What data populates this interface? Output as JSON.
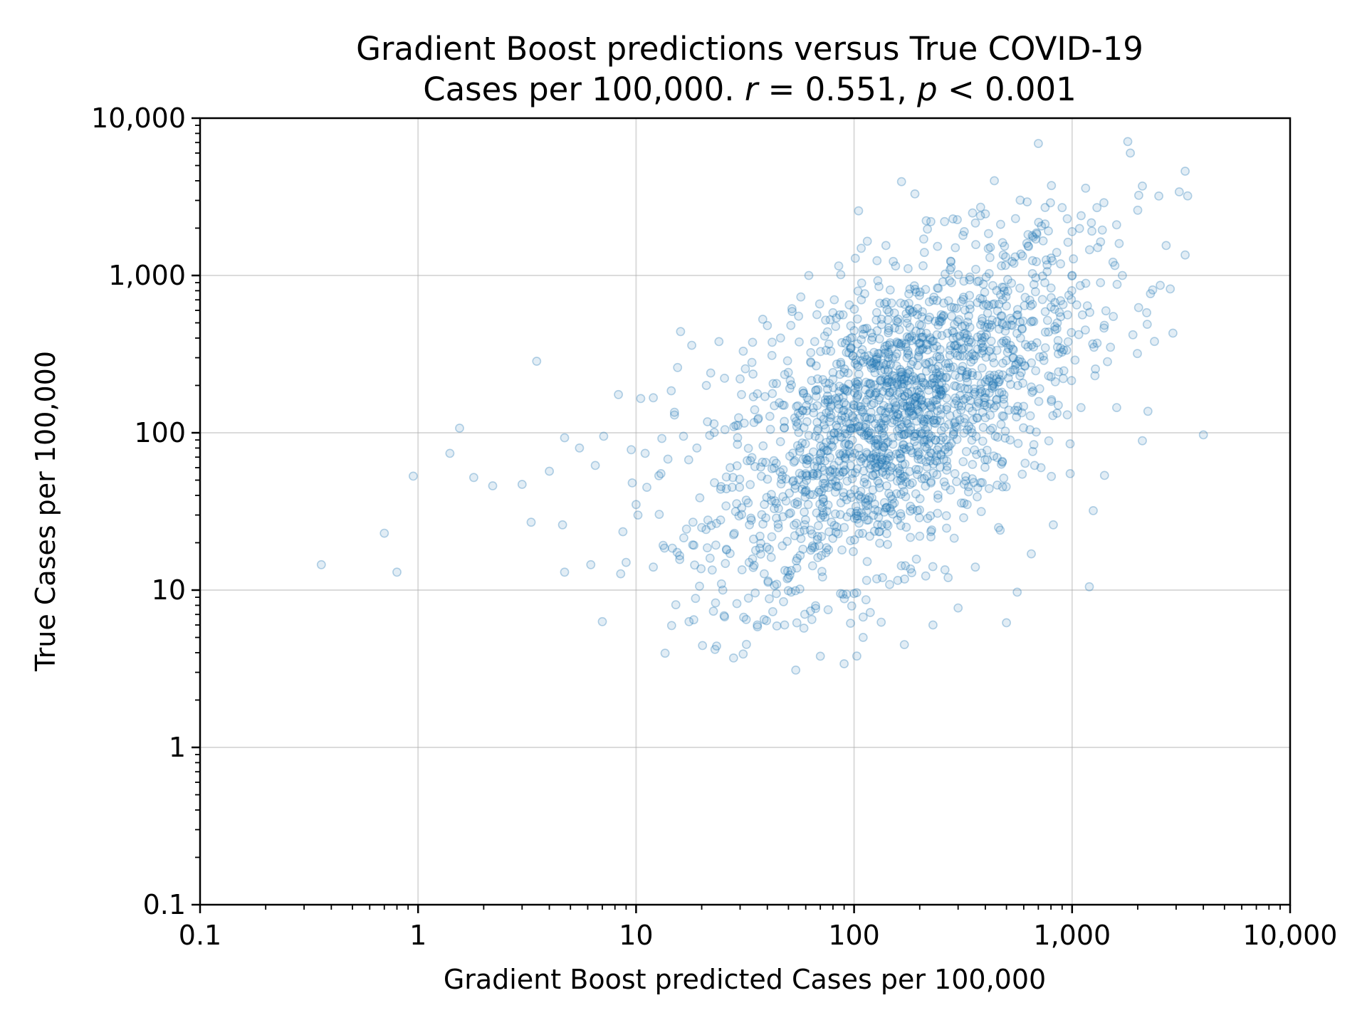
{
  "chart_data": {
    "type": "scatter",
    "title_line1": "Gradient Boost predictions versus True COVID-19",
    "title_line2_prefix": "Cases per 100,000. ",
    "title_r_symbol": "r",
    "title_r_value": " = 0.551, ",
    "title_p_symbol": "p",
    "title_p_value": " < 0.001",
    "xlabel": "Gradient Boost predicted Cases per 100,000",
    "ylabel": "True Cases per 100,000",
    "xscale": "log",
    "yscale": "log",
    "xlim": [
      0.1,
      10000
    ],
    "ylim": [
      0.1,
      10000
    ],
    "grid": true,
    "series_color": "#1f77b4",
    "x_ticks": [
      0.1,
      1,
      10,
      100,
      1000,
      10000
    ],
    "x_tick_labels": [
      "0.1",
      "1",
      "10",
      "100",
      "1,000",
      "10,000"
    ],
    "y_ticks": [
      0.1,
      1,
      10,
      100,
      1000,
      10000
    ],
    "y_tick_labels": [
      "0.1",
      "1",
      "10",
      "100",
      "1,000",
      "10,000"
    ],
    "points": [
      [
        0.36,
        14.5
      ],
      [
        0.7,
        23
      ],
      [
        0.8,
        13
      ],
      [
        0.95,
        53
      ],
      [
        1.4,
        74
      ],
      [
        1.55,
        107
      ],
      [
        1.8,
        52
      ],
      [
        2.2,
        46
      ],
      [
        3.0,
        47
      ],
      [
        3.3,
        27
      ],
      [
        3.5,
        285
      ],
      [
        4.0,
        57
      ],
      [
        4.6,
        26
      ],
      [
        4.7,
        13
      ],
      [
        4.7,
        93
      ],
      [
        5.5,
        80
      ],
      [
        6.2,
        14.5
      ],
      [
        6.5,
        62
      ],
      [
        7.0,
        6.3
      ],
      [
        7.1,
        95
      ],
      [
        8.3,
        175
      ],
      [
        8.5,
        12.7
      ],
      [
        8.7,
        23.5
      ],
      [
        9.0,
        15
      ],
      [
        9.5,
        78
      ],
      [
        9.6,
        48
      ],
      [
        10.0,
        35
      ],
      [
        10.2,
        30
      ],
      [
        10.5,
        165
      ],
      [
        11.0,
        74
      ],
      [
        11.2,
        45
      ],
      [
        12.0,
        167
      ],
      [
        12.0,
        14
      ],
      [
        13.0,
        55
      ],
      [
        13.5,
        18.5
      ],
      [
        14.0,
        68
      ],
      [
        14.5,
        185
      ],
      [
        15.0,
        135
      ],
      [
        15.5,
        260
      ],
      [
        16.0,
        440
      ],
      [
        16.5,
        95
      ],
      [
        17.5,
        6.3
      ],
      [
        18.0,
        360
      ],
      [
        19.0,
        80
      ],
      [
        20.0,
        25
      ],
      [
        21.0,
        200
      ],
      [
        22.0,
        240
      ],
      [
        23.0,
        4.2
      ],
      [
        24.0,
        380
      ],
      [
        25.0,
        10
      ],
      [
        26.0,
        18
      ],
      [
        27.0,
        60
      ],
      [
        28.0,
        3.7
      ],
      [
        29.0,
        8.2
      ],
      [
        30.0,
        220
      ],
      [
        31.0,
        330
      ],
      [
        32.0,
        6.5
      ],
      [
        33.0,
        15
      ],
      [
        34.0,
        280
      ],
      [
        35.0,
        140
      ],
      [
        36.0,
        6.0
      ],
      [
        37.0,
        22
      ],
      [
        38.0,
        65
      ],
      [
        39.0,
        170
      ],
      [
        40.0,
        480
      ],
      [
        42.0,
        310
      ],
      [
        44.0,
        9.5
      ],
      [
        45.0,
        33
      ],
      [
        46.0,
        400
      ],
      [
        47.0,
        150
      ],
      [
        48.0,
        6.0
      ],
      [
        50.0,
        12
      ],
      [
        52.0,
        590
      ],
      [
        54.0,
        3.1
      ],
      [
        55.0,
        35
      ],
      [
        57.0,
        730
      ],
      [
        60.0,
        55
      ],
      [
        62.0,
        1000
      ],
      [
        64.0,
        6.5
      ],
      [
        66.0,
        380
      ],
      [
        68.0,
        220
      ],
      [
        70.0,
        3.8
      ],
      [
        72.0,
        30
      ],
      [
        74.0,
        520
      ],
      [
        76.0,
        7.5
      ],
      [
        78.0,
        90
      ],
      [
        80.0,
        580
      ],
      [
        82.0,
        42
      ],
      [
        85.0,
        1150
      ],
      [
        88.0,
        18
      ],
      [
        90.0,
        3.4
      ],
      [
        92.0,
        150
      ],
      [
        95.0,
        650
      ],
      [
        98.0,
        70
      ],
      [
        100.0,
        9.5
      ],
      [
        102.0,
        290
      ],
      [
        105.0,
        40
      ],
      [
        108.0,
        700
      ],
      [
        110.0,
        5.0
      ],
      [
        112.0,
        125
      ],
      [
        115.0,
        1650
      ],
      [
        118.0,
        22
      ],
      [
        120.0,
        430
      ],
      [
        125.0,
        60
      ],
      [
        130.0,
        850
      ],
      [
        135.0,
        12
      ],
      [
        140.0,
        1550
      ],
      [
        145.0,
        180
      ],
      [
        150.0,
        35
      ],
      [
        155.0,
        1150
      ],
      [
        160.0,
        95
      ],
      [
        165.0,
        3950
      ],
      [
        170.0,
        4.5
      ],
      [
        175.0,
        300
      ],
      [
        180.0,
        600
      ],
      [
        185.0,
        48
      ],
      [
        190.0,
        3300
      ],
      [
        195.0,
        150
      ],
      [
        200.0,
        22
      ],
      [
        210.0,
        1400
      ],
      [
        220.0,
        85
      ],
      [
        225.0,
        2200
      ],
      [
        230.0,
        6.0
      ],
      [
        240.0,
        420
      ],
      [
        250.0,
        130
      ],
      [
        260.0,
        2200
      ],
      [
        270.0,
        12
      ],
      [
        280.0,
        900
      ],
      [
        290.0,
        55
      ],
      [
        300.0,
        7.7
      ],
      [
        310.0,
        250
      ],
      [
        320.0,
        1900
      ],
      [
        330.0,
        35
      ],
      [
        340.0,
        650
      ],
      [
        360.0,
        14
      ],
      [
        380.0,
        2400
      ],
      [
        400.0,
        180
      ],
      [
        420.0,
        1300
      ],
      [
        440.0,
        4000
      ],
      [
        460.0,
        25
      ],
      [
        480.0,
        700
      ],
      [
        500.0,
        6.2
      ],
      [
        520.0,
        90
      ],
      [
        550.0,
        2300
      ],
      [
        560.0,
        9.7
      ],
      [
        580.0,
        400
      ],
      [
        620.0,
        1600
      ],
      [
        650.0,
        17
      ],
      [
        700.0,
        6900
      ],
      [
        720.0,
        60
      ],
      [
        750.0,
        900
      ],
      [
        780.0,
        230
      ],
      [
        820.0,
        26
      ],
      [
        850.0,
        1400
      ],
      [
        900.0,
        2700
      ],
      [
        950.0,
        130
      ],
      [
        980.0,
        55
      ],
      [
        1000.0,
        1900
      ],
      [
        1050.0,
        650
      ],
      [
        1100.0,
        2400
      ],
      [
        1150.0,
        450
      ],
      [
        1200.0,
        10.5
      ],
      [
        1250.0,
        32
      ],
      [
        1300.0,
        2700
      ],
      [
        1350.0,
        900
      ],
      [
        1400.0,
        2900
      ],
      [
        1500.0,
        350
      ],
      [
        1600.0,
        2100
      ],
      [
        1700.0,
        1000
      ],
      [
        1800.0,
        7100
      ],
      [
        1850.0,
        6000
      ],
      [
        1900.0,
        420
      ],
      [
        2000.0,
        2600
      ],
      [
        2100.0,
        89
      ],
      [
        2100.0,
        3700
      ],
      [
        2200.0,
        580
      ],
      [
        2500.0,
        3200
      ],
      [
        2700.0,
        1550
      ],
      [
        2900.0,
        430
      ],
      [
        3100.0,
        3400
      ],
      [
        3300.0,
        1350
      ],
      [
        3300.0,
        4600
      ],
      [
        4000.0,
        97
      ]
    ],
    "cluster": {
      "center_x": 160,
      "center_y": 130,
      "count": 1750,
      "note_hidden": true
    }
  }
}
